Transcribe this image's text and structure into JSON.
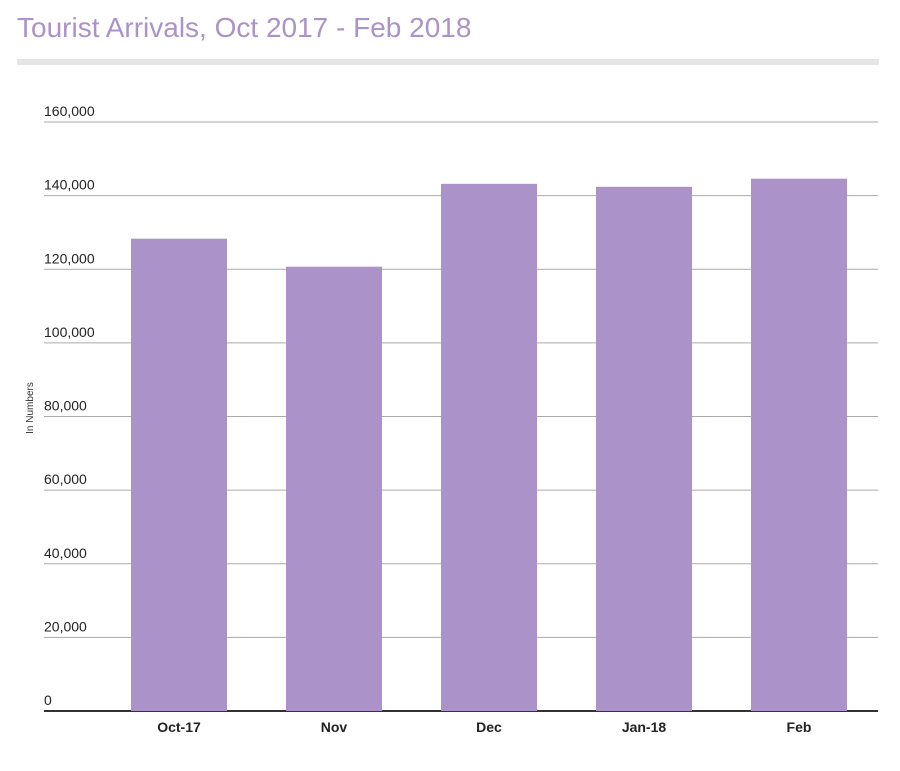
{
  "title": "Tourist Arrivals, Oct 2017 - Feb 2018",
  "colors": {
    "title": "#ab92c8",
    "bar": "#ab92c8",
    "grid": "#aaaaaa",
    "axis": "#333333"
  },
  "chart_data": {
    "type": "bar",
    "title": "Tourist Arrivals, Oct 2017 - Feb 2018",
    "xlabel": "",
    "ylabel": "In Numbers",
    "categories": [
      "Oct-17",
      "Nov",
      "Dec",
      "Jan-18",
      "Feb"
    ],
    "values": [
      128300,
      120700,
      143200,
      142400,
      144600
    ],
    "ylim": [
      0,
      160000
    ],
    "yticks": [
      0,
      20000,
      40000,
      60000,
      80000,
      100000,
      120000,
      140000,
      160000
    ],
    "ytick_labels": [
      "0",
      "20,000",
      "40,000",
      "60,000",
      "80,000",
      "100,000",
      "120,000",
      "140,000",
      "160,000"
    ],
    "grid": true,
    "legend": "none"
  }
}
